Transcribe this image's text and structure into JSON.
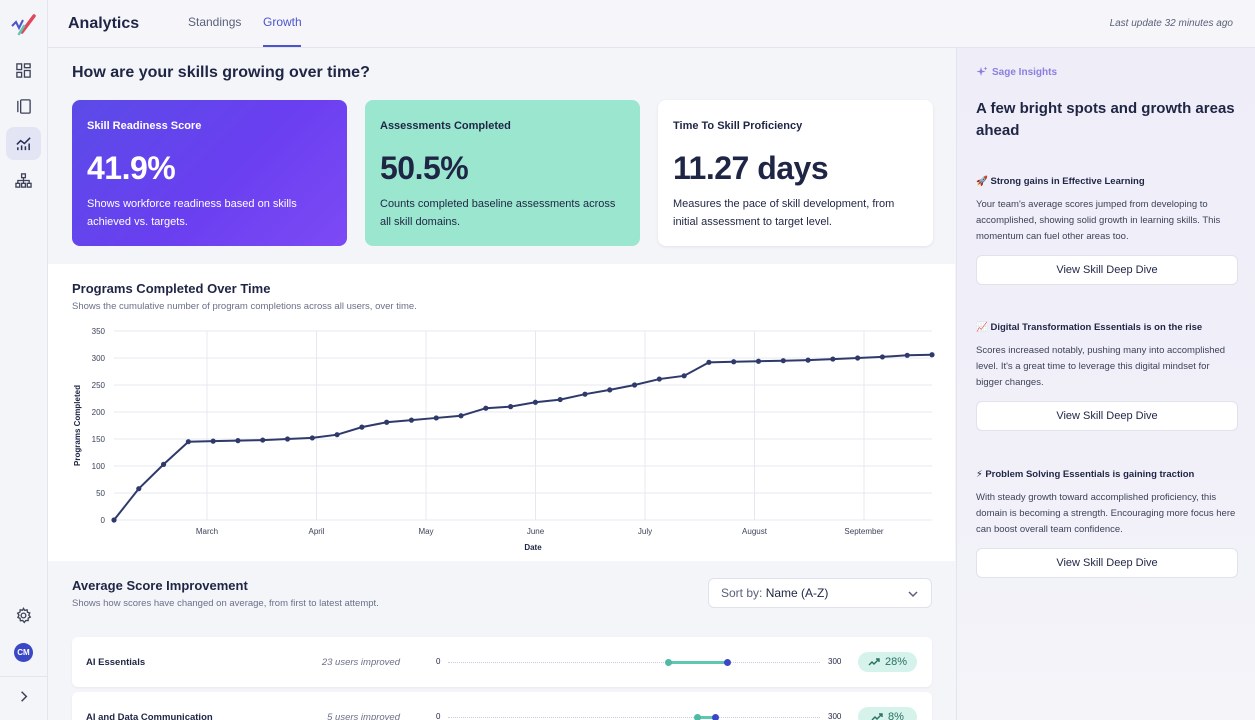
{
  "header": {
    "app_title": "Analytics",
    "tabs": [
      {
        "label": "Standings",
        "active": false
      },
      {
        "label": "Growth",
        "active": true
      }
    ],
    "last_update": "Last update 32 minutes ago"
  },
  "sidebar": {
    "icons": [
      "logo-icon",
      "dashboard-icon",
      "library-icon",
      "analytics-icon",
      "org-chart-icon",
      "settings-icon",
      "avatar",
      "expand-icon"
    ],
    "active_item": "analytics-icon",
    "avatar_initials": "CM"
  },
  "page": {
    "title": "How are your skills growing over time?"
  },
  "metrics": [
    {
      "label": "Skill Readiness Score",
      "value": "41.9%",
      "description": "Shows workforce readiness based on skills achieved vs. targets."
    },
    {
      "label": "Assessments Completed",
      "value": "50.5%",
      "description": "Counts completed baseline assessments across all skill domains."
    },
    {
      "label": "Time To Skill Proficiency",
      "value": "11.27 days",
      "description": "Measures the pace of skill development, from initial assessment to target level."
    }
  ],
  "programs_chart": {
    "title": "Programs Completed Over Time",
    "subtitle": "Shows the cumulative number of program completions across all users, over time."
  },
  "chart_data": {
    "type": "line",
    "xlabel": "Date",
    "ylabel": "Programs Completed",
    "ylim": [
      0,
      350
    ],
    "yticks": [
      0,
      50,
      100,
      150,
      200,
      250,
      300,
      350
    ],
    "x_tick_labels": [
      "March",
      "April",
      "May",
      "June",
      "July",
      "August",
      "September"
    ],
    "grid": true,
    "series": [
      {
        "values": [
          0,
          58,
          103,
          145,
          146,
          147,
          148,
          150,
          152,
          158,
          172,
          181,
          185,
          189,
          193,
          207,
          210,
          218,
          223,
          233,
          241,
          250,
          261,
          267,
          292,
          293,
          294,
          295,
          296,
          298,
          300,
          302,
          305,
          306
        ]
      }
    ],
    "line_color": "#2f3a6b"
  },
  "improvement": {
    "title": "Average Score Improvement",
    "subtitle": "Shows how scores have changed on average, from first to latest attempt.",
    "sort_label": "Sort by:",
    "sort_value": "Name (A-Z)",
    "rows": [
      {
        "name": "AI Essentials",
        "users": "23 users improved",
        "min": "0",
        "max": "300",
        "start": 0.592,
        "end": 0.752,
        "change": "28%"
      },
      {
        "name": "AI and Data Communication",
        "users": "5 users improved",
        "min": "0",
        "max": "300",
        "start": 0.672,
        "end": 0.72,
        "change": "8%"
      }
    ]
  },
  "insights": {
    "label": "Sage Insights",
    "title": "A few bright spots and growth areas ahead",
    "items": [
      {
        "emoji": "🚀",
        "heading": "Strong gains in Effective Learning",
        "text": "Your team's average scores jumped from developing to accomplished, showing solid growth in learning skills. This momentum can fuel other areas too.",
        "button": "View Skill Deep Dive"
      },
      {
        "emoji": "📈",
        "heading": "Digital Transformation Essentials is on the rise",
        "text": "Scores increased notably, pushing many into accomplished level. It's a great time to leverage this digital mindset for bigger changes.",
        "button": "View Skill Deep Dive"
      },
      {
        "emoji": "⚡",
        "heading": "Problem Solving Essentials is gaining traction",
        "text": "With steady growth toward accomplished proficiency, this domain is becoming a strength. Encouraging more focus here can boost overall team confidence.",
        "button": "View Skill Deep Dive"
      }
    ]
  }
}
